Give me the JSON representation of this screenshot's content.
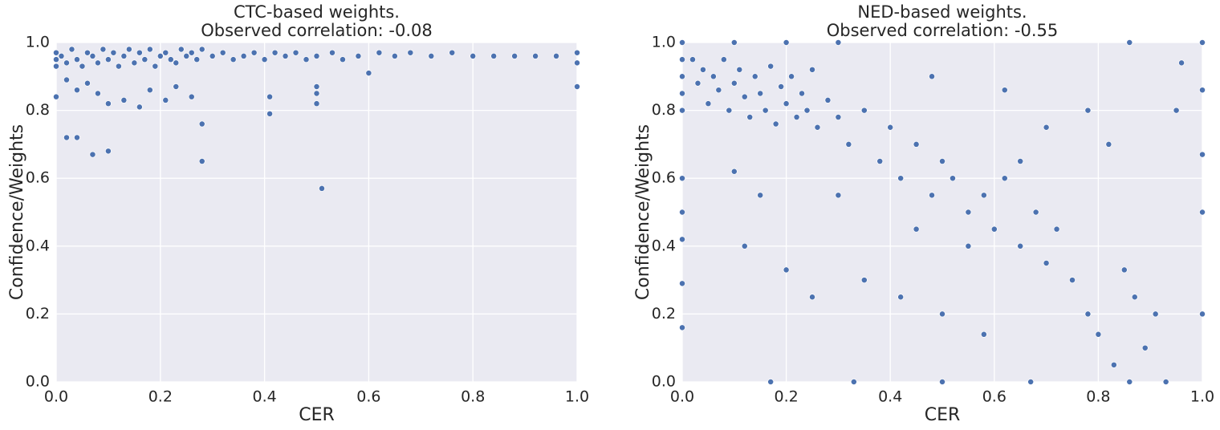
{
  "chart_data": [
    {
      "type": "scatter",
      "title": "CTC-based weights.",
      "subtitle": "Observed correlation: -0.08",
      "x_label": "CER",
      "y_label": "Confidence/Weights",
      "color": "#4c72b0",
      "grid": true,
      "xlim": [
        0,
        1
      ],
      "ylim": [
        0,
        1
      ],
      "xticks": [
        {
          "value": 0,
          "label": "0.0"
        },
        0.2,
        0.4,
        0.6,
        0.8,
        {
          "value": 1,
          "label": "1.0"
        }
      ],
      "yticks": [
        {
          "value": 0,
          "label": "0.0"
        },
        0.2,
        0.4,
        0.6,
        0.8,
        {
          "value": 1,
          "label": "1.0"
        }
      ],
      "x": [
        0,
        0,
        0,
        0.01,
        0.02,
        0.03,
        0.04,
        0.05,
        0.06,
        0.07,
        0.08,
        0.09,
        0.1,
        0.11,
        0.12,
        0.13,
        0.14,
        0.15,
        0.16,
        0.17,
        0.18,
        0.19,
        0.2,
        0.21,
        0.22,
        0.23,
        0.24,
        0.25,
        0.26,
        0.27,
        0.28,
        0.3,
        0.32,
        0.34,
        0.36,
        0.38,
        0.4,
        0.42,
        0.44,
        0.46,
        0.48,
        0.5,
        0.53,
        0.55,
        0.58,
        0.62,
        0.65,
        0.68,
        0.72,
        0.76,
        0.8,
        0.84,
        0.88,
        0.92,
        0.96,
        1.0,
        1.0,
        0.02,
        0.04,
        0.06,
        0.08,
        0.1,
        0.13,
        0.16,
        0.18,
        0.21,
        0.23,
        0.26,
        0,
        0.02,
        0.04,
        0.07,
        0.1,
        0.28,
        0.28,
        0.41,
        0.41,
        0.5,
        0.5,
        0.5,
        0.51,
        0.6,
        1.0
      ],
      "values": [
        0.95,
        0.93,
        0.97,
        0.96,
        0.94,
        0.98,
        0.95,
        0.93,
        0.97,
        0.96,
        0.94,
        0.98,
        0.95,
        0.97,
        0.93,
        0.96,
        0.98,
        0.94,
        0.97,
        0.95,
        0.98,
        0.93,
        0.96,
        0.97,
        0.95,
        0.94,
        0.98,
        0.96,
        0.97,
        0.95,
        0.98,
        0.96,
        0.97,
        0.95,
        0.96,
        0.97,
        0.95,
        0.97,
        0.96,
        0.97,
        0.95,
        0.96,
        0.97,
        0.95,
        0.96,
        0.97,
        0.96,
        0.97,
        0.96,
        0.97,
        0.96,
        0.96,
        0.96,
        0.96,
        0.96,
        0.97,
        0.94,
        0.89,
        0.86,
        0.88,
        0.85,
        0.82,
        0.83,
        0.81,
        0.86,
        0.83,
        0.87,
        0.84,
        0.84,
        0.72,
        0.72,
        0.67,
        0.68,
        0.65,
        0.76,
        0.79,
        0.84,
        0.82,
        0.85,
        0.87,
        0.57,
        0.91,
        0.87
      ]
    },
    {
      "type": "scatter",
      "title": "NED-based weights.",
      "subtitle": "Observed correlation: -0.55",
      "x_label": "CER",
      "y_label": "Confidence/Weights",
      "color": "#4c72b0",
      "grid": true,
      "xlim": [
        0,
        1
      ],
      "ylim": [
        0,
        1
      ],
      "xticks": [
        {
          "value": 0,
          "label": "0.0"
        },
        0.2,
        0.4,
        0.6,
        0.8,
        {
          "value": 1,
          "label": "1.0"
        }
      ],
      "yticks": [
        {
          "value": 0,
          "label": "0.0"
        },
        0.2,
        0.4,
        0.6,
        0.8,
        {
          "value": 1,
          "label": "1.0"
        }
      ],
      "x": [
        0,
        0,
        0,
        0,
        0,
        0,
        0,
        0,
        0,
        0,
        0.02,
        0.03,
        0.04,
        0.05,
        0.06,
        0.07,
        0.08,
        0.09,
        0.1,
        0.11,
        0.12,
        0.13,
        0.14,
        0.15,
        0.16,
        0.17,
        0.18,
        0.19,
        0.2,
        0.21,
        0.22,
        0.23,
        0.24,
        0.25,
        0.26,
        0.28,
        0.3,
        0.1,
        0.2,
        0.3,
        0.32,
        0.35,
        0.38,
        0.4,
        0.42,
        0.45,
        0.48,
        0.5,
        0.52,
        0.55,
        0.58,
        0.6,
        0.62,
        0.65,
        0.68,
        0.7,
        0.72,
        0.75,
        0.78,
        0.8,
        0.82,
        0.83,
        0.85,
        0.87,
        0.89,
        0.91,
        0.95,
        0.96,
        1.0,
        1.0,
        1.0,
        1.0,
        1.0,
        0.86,
        0.62,
        0.48,
        0.35,
        0.42,
        0.5,
        0.58,
        0.55,
        0.12,
        0.2,
        0.25,
        0.17,
        0.33,
        0.5,
        0.67,
        0.86,
        0.93,
        0.15,
        0.1,
        0.3,
        0.45,
        0.7,
        0.78,
        0.65
      ],
      "values": [
        1,
        0.95,
        0.9,
        0.85,
        0.8,
        0.6,
        0.5,
        0.42,
        0.29,
        0.16,
        0.95,
        0.88,
        0.92,
        0.82,
        0.9,
        0.86,
        0.95,
        0.8,
        0.88,
        0.92,
        0.84,
        0.78,
        0.9,
        0.85,
        0.8,
        0.93,
        0.76,
        0.87,
        0.82,
        0.9,
        0.78,
        0.85,
        0.8,
        0.92,
        0.75,
        0.83,
        0.78,
        1,
        1,
        1,
        0.7,
        0.8,
        0.65,
        0.75,
        0.6,
        0.7,
        0.55,
        0.65,
        0.6,
        0.5,
        0.55,
        0.45,
        0.6,
        0.4,
        0.5,
        0.35,
        0.45,
        0.3,
        0.2,
        0.14,
        0.7,
        0.05,
        0.33,
        0.25,
        0.1,
        0.2,
        0.8,
        0.94,
        0.86,
        0.67,
        0.5,
        0.2,
        1,
        1,
        0.86,
        0.9,
        0.3,
        0.25,
        0.2,
        0.14,
        0.4,
        0.4,
        0.33,
        0.25,
        0,
        0,
        0,
        0,
        0,
        0,
        0.55,
        0.62,
        0.55,
        0.45,
        0.75,
        0.8,
        0.65
      ]
    }
  ]
}
